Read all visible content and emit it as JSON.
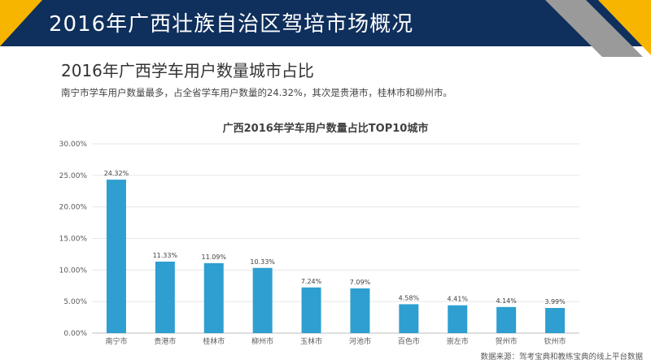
{
  "header": {
    "title": "2016年广西壮族自治区驾培市场概况"
  },
  "section": {
    "title": "2016年广西学车用户数量城市占比",
    "description": "南宁市学车用户数量最多，占全省学车用户数量的24.32%，其次是贵港市，桂林市和柳州市。"
  },
  "colors": {
    "header_bg": "#0f2f5c",
    "accent_yellow": "#f7b500",
    "accent_gray": "#9a9a9a",
    "bar": "#2e9fd0"
  },
  "chart_data": {
    "type": "bar",
    "title": "广西2016年学车用户数量占比TOP10城市",
    "categories": [
      "南宁市",
      "贵港市",
      "桂林市",
      "柳州市",
      "玉林市",
      "河池市",
      "百色市",
      "崇左市",
      "贺州市",
      "钦州市"
    ],
    "values": [
      24.32,
      11.33,
      11.09,
      10.33,
      7.24,
      7.09,
      4.58,
      4.41,
      4.14,
      3.99
    ],
    "data_labels": [
      "24.32%",
      "11.33%",
      "11.09%",
      "10.33%",
      "7.24%",
      "7.09%",
      "4.58%",
      "4.41%",
      "4.14%",
      "3.99%"
    ],
    "yticks": [
      "0.00%",
      "5.00%",
      "10.00%",
      "15.00%",
      "20.00%",
      "25.00%",
      "30.00%"
    ],
    "ylim": [
      0,
      30
    ],
    "xlabel": "",
    "ylabel": "",
    "grid": true,
    "legend": "none"
  },
  "footer": {
    "source": "数据来源：驾考宝典和教练宝典的线上平台数据"
  }
}
